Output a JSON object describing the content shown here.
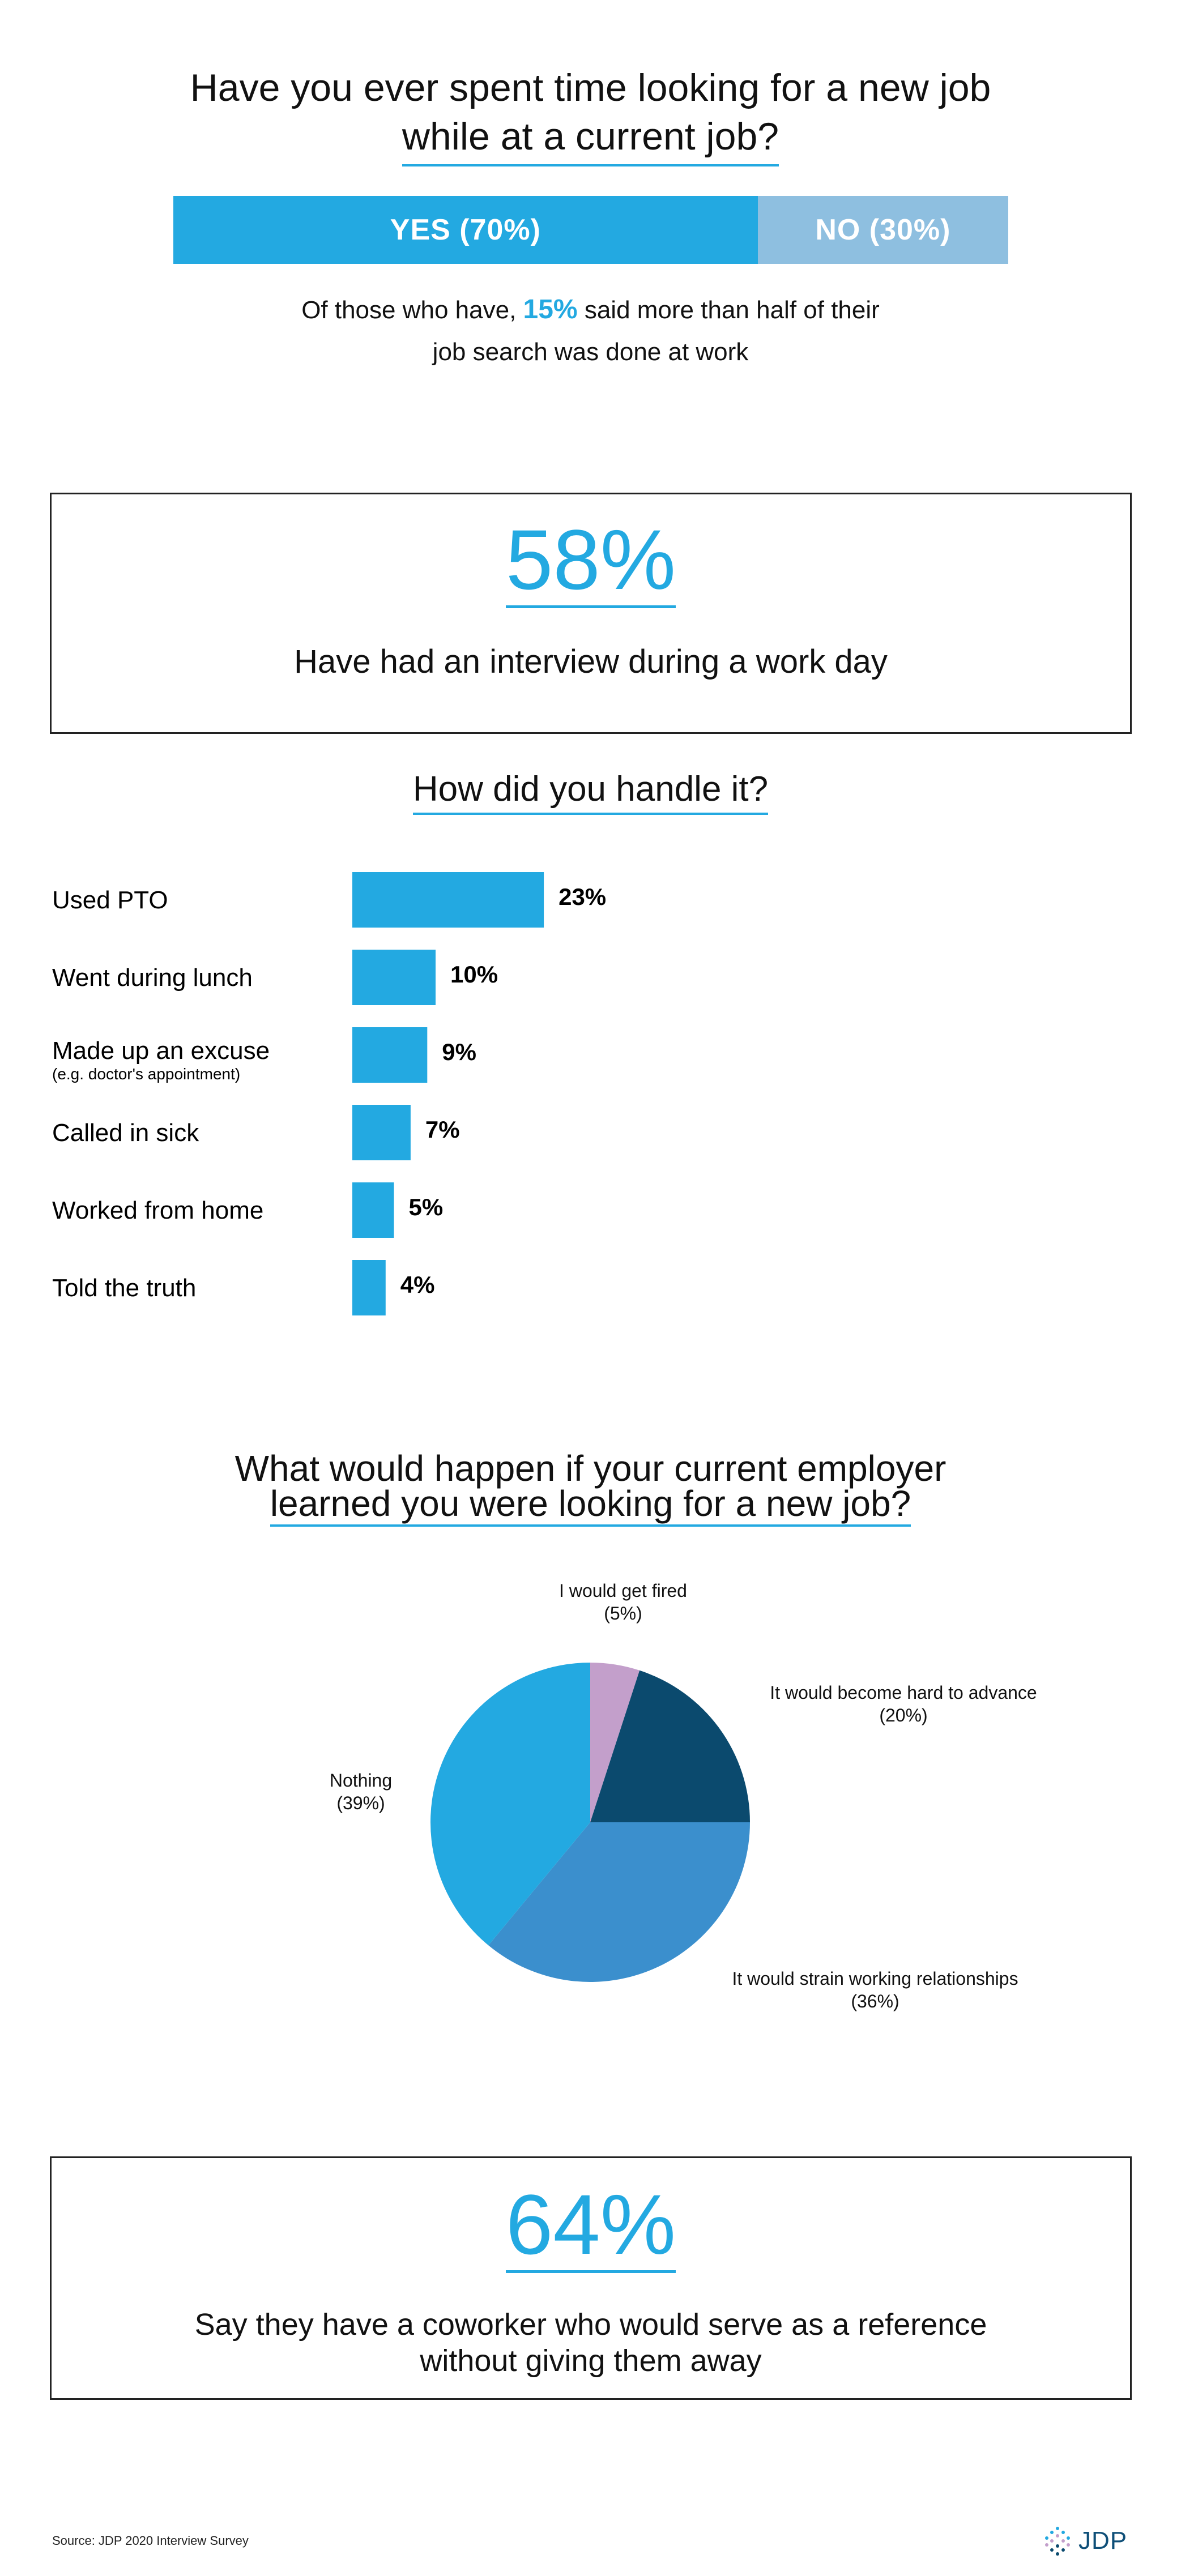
{
  "section1": {
    "title_line1": "Have you ever spent time looking for a new job",
    "title_line2": "while at a current job?",
    "yes_label": "YES (70%)",
    "no_label": "NO (30%)",
    "yes_share": 0.7,
    "note_pre": "Of those who have, ",
    "note_highlight": "15%",
    "note_post": " said more than half of their",
    "note_line2": "job search was done at work"
  },
  "box1": {
    "stat": "58%",
    "label": "Have had an interview during a work day"
  },
  "bar_section": {
    "title": "How did you handle it?"
  },
  "box2": {
    "stat": "64%",
    "label_line1": "Say they have a coworker who would serve as a reference",
    "label_line2": "without giving them away"
  },
  "footer": {
    "source": "Source: JDP 2020 Interview Survey",
    "brand": "JDP"
  },
  "q3": {
    "title_line1": "What would happen if your current employer",
    "title_line2": "learned you were looking for a new job?"
  },
  "colors": {
    "accent": "#23a9e1",
    "no_bar": "#8ebfe0",
    "pie_fired": "#c39fcb",
    "pie_advance": "#0b4a6e",
    "pie_strain": "#3b8fcd",
    "pie_nothing": "#23a9e1"
  },
  "chart_data": [
    {
      "type": "bar",
      "orientation": "horizontal",
      "title": "How did you handle it?",
      "categories": [
        "Used PTO",
        "Went during lunch",
        "Made up an excuse",
        "Called in sick",
        "Worked from home",
        "Told the truth"
      ],
      "sublabels": [
        "",
        "",
        "(e.g. doctor's appointment)",
        "",
        "",
        ""
      ],
      "values": [
        23,
        10,
        9,
        7,
        5,
        4
      ],
      "value_labels": [
        "23%",
        "10%",
        "9%",
        "7%",
        "5%",
        "4%"
      ],
      "grid": false
    },
    {
      "type": "pie",
      "title": "What would happen if your current employer learned you were looking for a new job?",
      "slices": [
        {
          "label": "I would get fired",
          "value_label": "(5%)",
          "value": 5
        },
        {
          "label": "It would become hard to advance",
          "value_label": "(20%)",
          "value": 20
        },
        {
          "label": "It would strain working relationships",
          "value_label": "(36%)",
          "value": 36
        },
        {
          "label": "Nothing",
          "value_label": "(39%)",
          "value": 39
        }
      ]
    }
  ]
}
